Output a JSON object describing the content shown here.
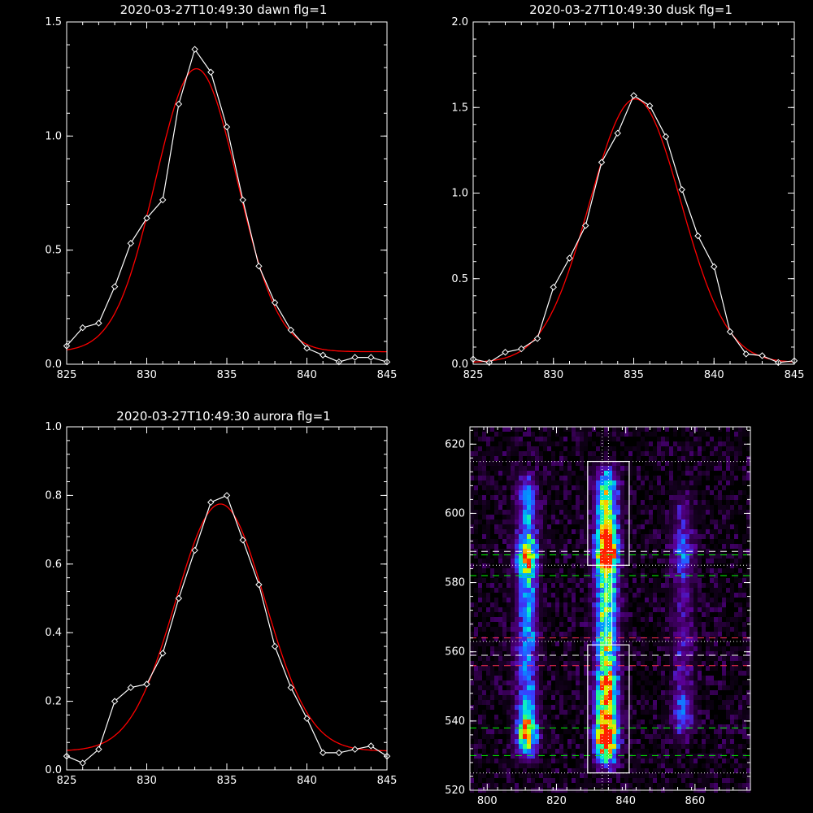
{
  "colors": {
    "background": "#000000",
    "axes": "#ffffff",
    "data_line": "#ffffff",
    "fit_line": "#ff0000",
    "marker": "#ffffff",
    "box": "#ffffff",
    "dotted": "#ffffff",
    "dashed_white": "#ffffff",
    "dashed_green": "#00ff00",
    "dashed_red": "#ff3050"
  },
  "chart_data": [
    {
      "type": "line",
      "title": "2020-03-27T10:49:30 dawn flg=1",
      "xlim": [
        825,
        845
      ],
      "ylim": [
        0,
        1.5
      ],
      "xticks": [
        "825",
        "830",
        "835",
        "840",
        "845"
      ],
      "xtick_values": [
        825,
        830,
        835,
        840,
        845
      ],
      "yticks": [
        "0.0",
        "0.5",
        "1.0",
        "1.5"
      ],
      "ytick_values": [
        0,
        0.5,
        1.0,
        1.5
      ],
      "series": [
        {
          "style": "line-markers",
          "x": [
            825,
            826,
            827,
            828,
            829,
            830,
            831,
            832,
            833,
            834,
            835,
            836,
            837,
            838,
            839,
            840,
            841,
            842,
            843,
            844,
            845
          ],
          "y": [
            0.08,
            0.16,
            0.18,
            0.34,
            0.53,
            0.64,
            0.72,
            1.14,
            1.38,
            1.28,
            1.04,
            0.72,
            0.43,
            0.27,
            0.15,
            0.07,
            0.04,
            0.01,
            0.03,
            0.03,
            0.01
          ]
        },
        {
          "style": "fit",
          "fit": {
            "amp": 1.24,
            "center": 833.1,
            "sigma": 2.55,
            "baseline": 0.055
          }
        }
      ]
    },
    {
      "type": "line",
      "title": "2020-03-27T10:49:30 dusk flg=1",
      "xlim": [
        825,
        845
      ],
      "ylim": [
        0,
        2.0
      ],
      "xticks": [
        "825",
        "830",
        "835",
        "840",
        "845"
      ],
      "xtick_values": [
        825,
        830,
        835,
        840,
        845
      ],
      "yticks": [
        "0.0",
        "0.5",
        "1.0",
        "1.5",
        "2.0"
      ],
      "ytick_values": [
        0,
        0.5,
        1.0,
        1.5,
        2.0
      ],
      "series": [
        {
          "style": "line-markers",
          "x": [
            825,
            826,
            827,
            828,
            829,
            830,
            831,
            832,
            833,
            834,
            835,
            836,
            837,
            838,
            839,
            840,
            841,
            842,
            843,
            844,
            845
          ],
          "y": [
            0.03,
            0.01,
            0.07,
            0.09,
            0.15,
            0.45,
            0.62,
            0.81,
            1.18,
            1.35,
            1.57,
            1.51,
            1.33,
            1.02,
            0.75,
            0.57,
            0.19,
            0.06,
            0.05,
            0.01,
            0.02
          ]
        },
        {
          "style": "fit",
          "fit": {
            "amp": 1.54,
            "center": 835.1,
            "sigma": 2.85,
            "baseline": 0.01
          }
        }
      ]
    },
    {
      "type": "line",
      "title": "2020-03-27T10:49:30 aurora flg=1",
      "xlim": [
        825,
        845
      ],
      "ylim": [
        0,
        1.0
      ],
      "xticks": [
        "825",
        "830",
        "835",
        "840",
        "845"
      ],
      "xtick_values": [
        825,
        830,
        835,
        840,
        845
      ],
      "yticks": [
        "0.0",
        "0.2",
        "0.4",
        "0.6",
        "0.8",
        "1.0"
      ],
      "ytick_values": [
        0,
        0.2,
        0.4,
        0.6,
        0.8,
        1.0
      ],
      "series": [
        {
          "style": "line-markers",
          "x": [
            825,
            826,
            827,
            828,
            829,
            830,
            831,
            832,
            833,
            834,
            835,
            836,
            837,
            838,
            839,
            840,
            841,
            842,
            843,
            844,
            845
          ],
          "y": [
            0.04,
            0.02,
            0.06,
            0.2,
            0.24,
            0.25,
            0.34,
            0.5,
            0.64,
            0.78,
            0.8,
            0.67,
            0.54,
            0.36,
            0.24,
            0.15,
            0.05,
            0.05,
            0.06,
            0.07,
            0.04
          ]
        },
        {
          "style": "fit",
          "fit": {
            "amp": 0.72,
            "center": 834.6,
            "sigma": 2.8,
            "baseline": 0.055
          }
        }
      ]
    },
    {
      "type": "heatmap",
      "title": "",
      "xlim": [
        795,
        876
      ],
      "ylim": [
        520,
        625
      ],
      "xticks": [
        "800",
        "820",
        "840",
        "860"
      ],
      "xtick_values": [
        800,
        820,
        840,
        860
      ],
      "yticks": [
        "520",
        "540",
        "560",
        "580",
        "600",
        "620"
      ],
      "ytick_values": [
        520,
        540,
        560,
        580,
        600,
        620
      ],
      "colormap": [
        "#000000",
        "#300048",
        "#5a0096",
        "#3a3cff",
        "#0096ff",
        "#00e8e0",
        "#30ff70",
        "#d0ff00",
        "#ffc000",
        "#ff2000"
      ],
      "emission_bands": [
        {
          "x": 811.5,
          "width": 2.8,
          "y_range": [
            530,
            610
          ],
          "strength": 0.45,
          "peaks": [
            {
              "y": 587,
              "strength": 0.55
            },
            {
              "y": 537,
              "strength": 0.55
            }
          ]
        },
        {
          "x": 834.5,
          "width": 3.0,
          "y_range": [
            528,
            612
          ],
          "strength": 0.75,
          "peaks": [
            {
              "y": 589,
              "strength": 0.8
            },
            {
              "y": 536,
              "strength": 0.75
            },
            {
              "y": 548,
              "strength": 0.35
            }
          ]
        },
        {
          "x": 856.5,
          "width": 2.8,
          "y_range": [
            535,
            605
          ],
          "strength": 0.2,
          "peaks": [
            {
              "y": 589,
              "strength": 0.25
            },
            {
              "y": 542,
              "strength": 0.2
            }
          ]
        }
      ],
      "boxes": [
        {
          "x": [
            829,
            841
          ],
          "y": [
            585,
            615
          ]
        },
        {
          "x": [
            829,
            841
          ],
          "y": [
            525,
            562
          ]
        }
      ],
      "vertical_lines": [
        {
          "x": 833.2,
          "style": "dotted",
          "color": "white"
        },
        {
          "x": 835.0,
          "style": "dotted",
          "color": "white"
        },
        {
          "x": 834.3,
          "style": "solid",
          "color": "white",
          "y_range": [
            562,
            585
          ]
        },
        {
          "x": 836.0,
          "style": "solid",
          "color": "white",
          "y_range": [
            562,
            585
          ]
        }
      ],
      "horizontal_lines": [
        {
          "y": 615,
          "style": "dotted",
          "color": "white"
        },
        {
          "y": 585,
          "style": "dotted",
          "color": "white"
        },
        {
          "y": 563,
          "style": "dotted",
          "color": "white"
        },
        {
          "y": 525,
          "style": "dotted",
          "color": "white"
        },
        {
          "y": 589,
          "style": "dashed",
          "color": "white"
        },
        {
          "y": 559,
          "style": "dashed",
          "color": "white"
        },
        {
          "y": 588,
          "style": "dashed",
          "color": "green"
        },
        {
          "y": 582,
          "style": "dashed",
          "color": "green"
        },
        {
          "y": 538,
          "style": "dashed",
          "color": "green"
        },
        {
          "y": 530,
          "style": "dashed",
          "color": "green"
        },
        {
          "y": 564,
          "style": "dashed",
          "color": "red"
        },
        {
          "y": 556,
          "style": "dashed",
          "color": "red"
        }
      ]
    }
  ]
}
